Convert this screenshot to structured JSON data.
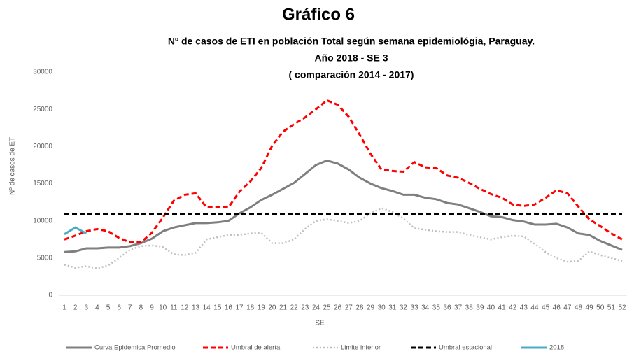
{
  "chart_data": {
    "type": "line",
    "title": "Gráfico 6",
    "subtitle": [
      "Nº de casos de ETI en población Total según semana epidemiológia, Paraguay.",
      "Año 2018 - SE 3",
      "( comparación 2014 - 2017)"
    ],
    "y_label": "Nº de casos de ETI",
    "x_label": "SE",
    "categories": [
      "1",
      "2",
      "3",
      "4",
      "5",
      "6",
      "7",
      "8",
      "9",
      "10",
      "11",
      "12",
      "13",
      "14",
      "15",
      "16",
      "17",
      "18",
      "19",
      "20",
      "21",
      "22",
      "23",
      "24",
      "25",
      "26",
      "27",
      "28",
      "29",
      "30",
      "31",
      "32",
      "33",
      "34",
      "35",
      "36",
      "37",
      "38",
      "39",
      "40",
      "41",
      "42",
      "43",
      "44",
      "45",
      "46",
      "47",
      "48",
      "49",
      "50",
      "51",
      "52"
    ],
    "ylim": [
      0,
      30000
    ],
    "yticks": [
      0,
      5000,
      10000,
      15000,
      20000,
      25000,
      30000
    ],
    "grid": false,
    "legend": "bottom",
    "series": [
      {
        "name": "Curva Epidemica Promedio",
        "color": "#7f7f7f",
        "line_style": "solid",
        "values": [
          5800,
          5900,
          6300,
          6300,
          6400,
          6400,
          6600,
          7000,
          7600,
          8600,
          9100,
          9400,
          9700,
          9700,
          9800,
          10000,
          11000,
          11800,
          12800,
          13500,
          14300,
          15100,
          16300,
          17500,
          18100,
          17700,
          16900,
          15800,
          15000,
          14400,
          14000,
          13500,
          13500,
          13100,
          12900,
          12400,
          12200,
          11700,
          11200,
          10600,
          10500,
          10100,
          9900,
          9500,
          9500,
          9600,
          9100,
          8300,
          8100,
          7300,
          6700,
          6100
        ]
      },
      {
        "name": "Umbral de alerta",
        "color": "#ff0000",
        "line_style": "dash",
        "values": [
          7500,
          8000,
          8600,
          8900,
          8600,
          7700,
          7100,
          7100,
          8400,
          10400,
          12700,
          13500,
          13700,
          11800,
          11900,
          11800,
          13900,
          15300,
          17100,
          20100,
          22000,
          23000,
          23900,
          25000,
          26200,
          25600,
          24000,
          21600,
          19000,
          16900,
          16700,
          16600,
          17900,
          17200,
          17100,
          16100,
          15800,
          15100,
          14300,
          13600,
          13100,
          12200,
          12000,
          12200,
          13100,
          14100,
          13700,
          11900,
          10200,
          9300,
          8300,
          7500
        ]
      },
      {
        "name": "Limite inferior",
        "color": "#bfbfbf",
        "line_style": "dot",
        "values": [
          4100,
          3700,
          3900,
          3600,
          4000,
          5000,
          6100,
          6600,
          6700,
          6500,
          5500,
          5400,
          5700,
          7500,
          7800,
          8100,
          8100,
          8300,
          8400,
          7000,
          7000,
          7500,
          8900,
          10000,
          10200,
          10000,
          9700,
          10000,
          11000,
          11700,
          11200,
          10300,
          9000,
          8800,
          8600,
          8500,
          8500,
          8100,
          7800,
          7500,
          7800,
          8000,
          7900,
          6900,
          5800,
          5000,
          4500,
          4600,
          5900,
          5400,
          5000,
          4600
        ]
      },
      {
        "name": "Umbral estacional",
        "color": "#000000",
        "line_style": "dash",
        "values": [
          10900,
          10900,
          10900,
          10900,
          10900,
          10900,
          10900,
          10900,
          10900,
          10900,
          10900,
          10900,
          10900,
          10900,
          10900,
          10900,
          10900,
          10900,
          10900,
          10900,
          10900,
          10900,
          10900,
          10900,
          10900,
          10900,
          10900,
          10900,
          10900,
          10900,
          10900,
          10900,
          10900,
          10900,
          10900,
          10900,
          10900,
          10900,
          10900,
          10900,
          10900,
          10900,
          10900,
          10900,
          10900,
          10900,
          10900,
          10900,
          10900,
          10900,
          10900,
          10900
        ]
      },
      {
        "name": "2018",
        "color": "#4bacc6",
        "line_style": "solid",
        "values": [
          8200,
          9100,
          8300,
          null,
          null,
          null,
          null,
          null,
          null,
          null,
          null,
          null,
          null,
          null,
          null,
          null,
          null,
          null,
          null,
          null,
          null,
          null,
          null,
          null,
          null,
          null,
          null,
          null,
          null,
          null,
          null,
          null,
          null,
          null,
          null,
          null,
          null,
          null,
          null,
          null,
          null,
          null,
          null,
          null,
          null,
          null,
          null,
          null,
          null,
          null,
          null,
          null
        ]
      }
    ]
  }
}
